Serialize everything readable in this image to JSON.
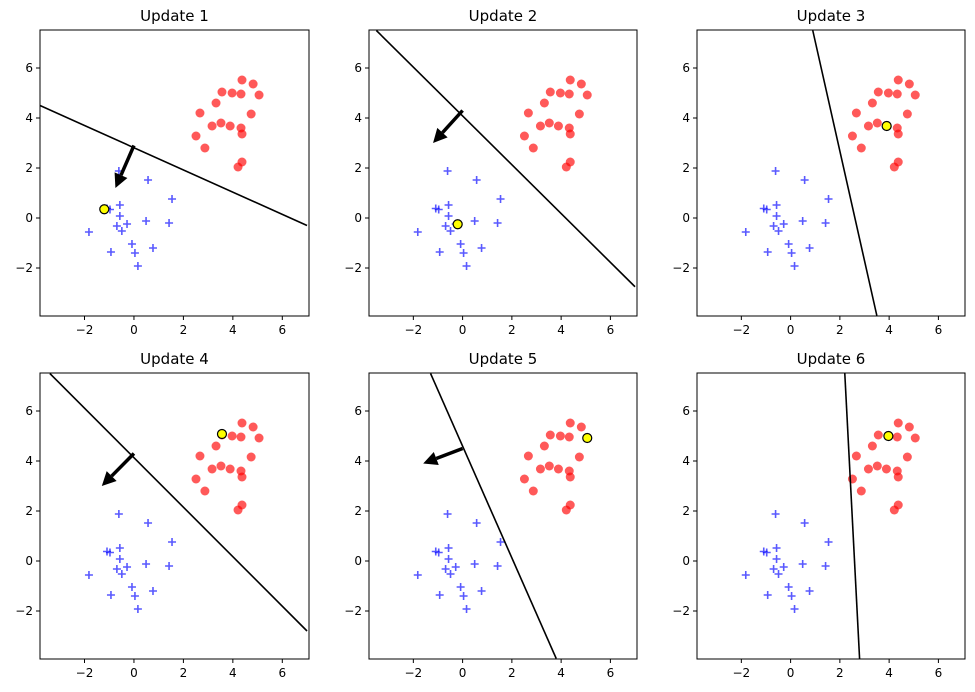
{
  "chart_data": [
    {
      "type": "scatter",
      "title": "Update 1",
      "line": [
        [
          -3.8,
          4.5
        ],
        [
          7.0,
          -0.3
        ]
      ],
      "arrow": [
        [
          0,
          2.9
        ],
        [
          -0.75,
          1.2
        ]
      ],
      "highlight": [
        -1.2,
        0.35
      ]
    },
    {
      "type": "scatter",
      "title": "Update 2",
      "line": [
        [
          -3.5,
          7.5
        ],
        [
          7.0,
          -2.75
        ]
      ],
      "arrow": [
        [
          0,
          4.3
        ],
        [
          -1.2,
          3.0
        ]
      ],
      "highlight": [
        -0.2,
        -0.25
      ]
    },
    {
      "type": "scatter",
      "title": "Update 3",
      "line": [
        [
          0.9,
          7.5
        ],
        [
          3.5,
          -3.9
        ]
      ],
      "arrow": null,
      "highlight": [
        3.9,
        3.68
      ]
    },
    {
      "type": "scatter",
      "title": "Update 4",
      "line": [
        [
          -3.4,
          7.5
        ],
        [
          7.0,
          -2.8
        ]
      ],
      "arrow": [
        [
          0,
          4.3
        ],
        [
          -1.3,
          3.0
        ]
      ],
      "highlight": [
        3.56,
        5.08
      ]
    },
    {
      "type": "scatter",
      "title": "Update 5",
      "line": [
        [
          -1.3,
          7.5
        ],
        [
          3.8,
          -3.9
        ]
      ],
      "arrow": [
        [
          0,
          4.5
        ],
        [
          -1.6,
          3.9
        ]
      ],
      "highlight": [
        5.06,
        4.92
      ]
    },
    {
      "type": "scatter",
      "title": "Update 6",
      "line": [
        [
          2.2,
          7.5
        ],
        [
          2.8,
          -3.9
        ]
      ],
      "arrow": null,
      "highlight": [
        3.97,
        5.0
      ]
    }
  ],
  "shared": {
    "xlim": [
      -3.8,
      7.08
    ],
    "ylim": [
      -3.92,
      7.52
    ],
    "xticks": [
      -2,
      0,
      2,
      4,
      6
    ],
    "yticks": [
      -2,
      0,
      2,
      4,
      6
    ],
    "red_color": "#ff0000",
    "blue_color": "#0000ff",
    "highlight_color": "#ffff00",
    "class_pos": [
      [
        4.37,
        5.52
      ],
      [
        4.82,
        5.36
      ],
      [
        5.06,
        4.92
      ],
      [
        3.56,
        5.04
      ],
      [
        3.97,
        5.0
      ],
      [
        4.33,
        4.96
      ],
      [
        3.32,
        4.6
      ],
      [
        2.67,
        4.2
      ],
      [
        4.74,
        4.16
      ],
      [
        3.16,
        3.68
      ],
      [
        3.52,
        3.8
      ],
      [
        3.89,
        3.68
      ],
      [
        4.33,
        3.6
      ],
      [
        4.37,
        3.36
      ],
      [
        2.51,
        3.28
      ],
      [
        2.87,
        2.8
      ],
      [
        4.37,
        2.24
      ],
      [
        4.21,
        2.04
      ]
    ],
    "class_neg": [
      [
        0.57,
        1.52
      ],
      [
        1.54,
        0.76
      ],
      [
        -0.57,
        0.52
      ],
      [
        -0.57,
        0.08
      ],
      [
        -0.69,
        -0.32
      ],
      [
        -0.49,
        -0.52
      ],
      [
        -0.28,
        -0.24
      ],
      [
        0.49,
        -0.12
      ],
      [
        1.42,
        -0.2
      ],
      [
        -1.82,
        -0.56
      ],
      [
        -0.08,
        -1.04
      ],
      [
        -0.93,
        -1.36
      ],
      [
        0.04,
        -1.4
      ],
      [
        0.77,
        -1.2
      ],
      [
        0.16,
        -1.92
      ],
      [
        -1.09,
        0.38
      ],
      [
        -0.97,
        0.34
      ],
      [
        -0.61,
        1.88
      ]
    ]
  }
}
